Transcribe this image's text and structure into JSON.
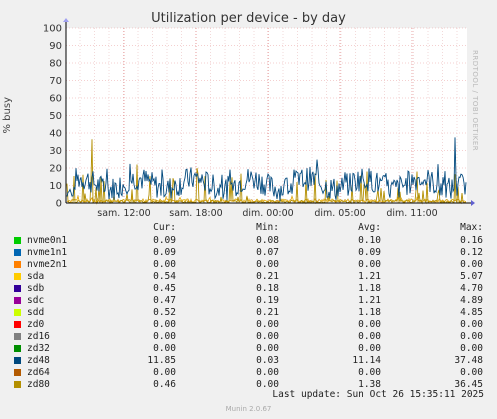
{
  "chart_data": {
    "type": "line",
    "title": "Utilization per device - by day",
    "ylabel": "% busy",
    "xlabel": "",
    "ylim": [
      0,
      100
    ],
    "yticks": [
      0,
      10,
      20,
      30,
      40,
      50,
      60,
      70,
      80,
      90,
      100
    ],
    "x_ticks": [
      "sam. 12:00",
      "sam. 18:00",
      "dim. 00:00",
      "dim. 05:00",
      "dim. 11:00"
    ],
    "grid": true,
    "series": [
      {
        "name": "nvme0n1",
        "color": "#00cc00"
      },
      {
        "name": "nvme1n1",
        "color": "#0066b3"
      },
      {
        "name": "nvme2n1",
        "color": "#ff8000"
      },
      {
        "name": "sda",
        "color": "#ffcc00"
      },
      {
        "name": "sdb",
        "color": "#330099"
      },
      {
        "name": "sdc",
        "color": "#990099"
      },
      {
        "name": "sdd",
        "color": "#ccff00"
      },
      {
        "name": "zd0",
        "color": "#ff0000"
      },
      {
        "name": "zd16",
        "color": "#808080"
      },
      {
        "name": "zd32",
        "color": "#008f00"
      },
      {
        "name": "zd48",
        "color": "#00487d"
      },
      {
        "name": "zd64",
        "color": "#b35a00"
      },
      {
        "name": "zd80",
        "color": "#b38f00"
      }
    ]
  },
  "legend": {
    "headers": {
      "cur": "Cur:",
      "min": "Min:",
      "avg": "Avg:",
      "max": "Max:"
    },
    "rows": [
      {
        "name": "nvme0n1",
        "cur": "0.09",
        "min": "0.08",
        "avg": "0.10",
        "max": "0.16"
      },
      {
        "name": "nvme1n1",
        "cur": "0.09",
        "min": "0.07",
        "avg": "0.09",
        "max": "0.12"
      },
      {
        "name": "nvme2n1",
        "cur": "0.00",
        "min": "0.00",
        "avg": "0.00",
        "max": "0.00"
      },
      {
        "name": "sda",
        "cur": "0.54",
        "min": "0.21",
        "avg": "1.21",
        "max": "5.07"
      },
      {
        "name": "sdb",
        "cur": "0.45",
        "min": "0.18",
        "avg": "1.18",
        "max": "4.70"
      },
      {
        "name": "sdc",
        "cur": "0.47",
        "min": "0.19",
        "avg": "1.21",
        "max": "4.89"
      },
      {
        "name": "sdd",
        "cur": "0.52",
        "min": "0.21",
        "avg": "1.18",
        "max": "4.85"
      },
      {
        "name": "zd0",
        "cur": "0.00",
        "min": "0.00",
        "avg": "0.00",
        "max": "0.00"
      },
      {
        "name": "zd16",
        "cur": "0.00",
        "min": "0.00",
        "avg": "0.00",
        "max": "0.00"
      },
      {
        "name": "zd32",
        "cur": "0.00",
        "min": "0.00",
        "avg": "0.00",
        "max": "0.00"
      },
      {
        "name": "zd48",
        "cur": "11.85",
        "min": "0.03",
        "avg": "11.14",
        "max": "37.48"
      },
      {
        "name": "zd64",
        "cur": "0.00",
        "min": "0.00",
        "avg": "0.00",
        "max": "0.00"
      },
      {
        "name": "zd80",
        "cur": "0.46",
        "min": "0.00",
        "avg": "1.38",
        "max": "36.45"
      }
    ]
  },
  "footer": {
    "last_update": "Last update: Sun Oct 26 15:35:11 2025",
    "munin": "Munin 2.0.67"
  },
  "watermark": "RRDTOOL / TOBI OETIKER"
}
